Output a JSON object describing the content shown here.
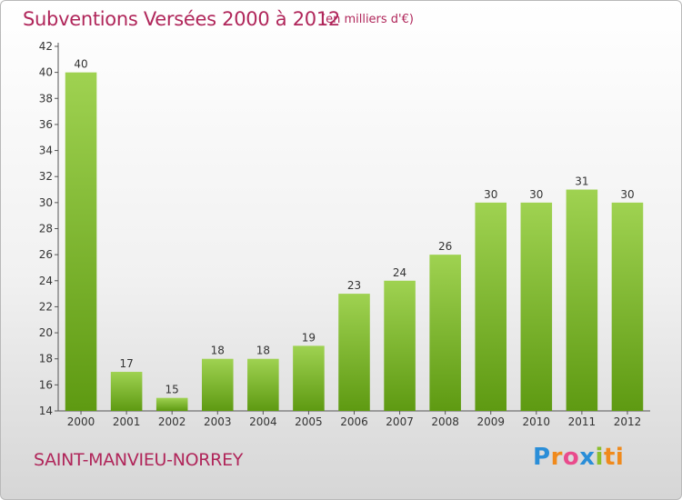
{
  "header": {
    "title": "Subventions Versées 2000 à 2012",
    "subtitle": "(en milliers d'€)"
  },
  "footer": {
    "commune": "SAINT-MANVIEU-NORREY",
    "brand_letters": [
      "P",
      "r",
      "o",
      "x",
      "i",
      "ti"
    ]
  },
  "colors": {
    "title": "#b0265a",
    "bar_top": "#9fd251",
    "bar_bottom": "#5e9a12"
  },
  "chart_data": {
    "type": "bar",
    "title": "Subventions Versées 2000 à 2012",
    "subtitle": "(en milliers d'€)",
    "categories": [
      "2000",
      "2001",
      "2002",
      "2003",
      "2004",
      "2005",
      "2006",
      "2007",
      "2008",
      "2009",
      "2010",
      "2011",
      "2012"
    ],
    "values": [
      40,
      17,
      15,
      18,
      18,
      19,
      23,
      24,
      26,
      30,
      30,
      31,
      30
    ],
    "ylim": [
      14,
      42
    ],
    "yticks": [
      14,
      16,
      18,
      20,
      22,
      24,
      26,
      28,
      30,
      32,
      34,
      36,
      38,
      40,
      42
    ],
    "grid": false,
    "data_labels": true
  }
}
